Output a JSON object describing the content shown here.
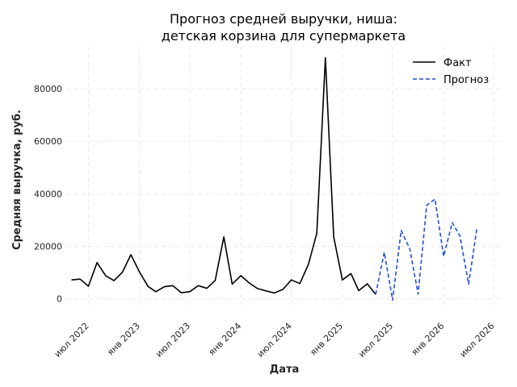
{
  "chart_data": {
    "type": "line",
    "title": [
      "Прогноз средней выручки, ниша:",
      "детская корзина для супермаркета"
    ],
    "xlabel": "Дата",
    "ylabel": "Средняя выручка, руб.",
    "x_range": [
      "2022-04-15",
      "2026-08-01"
    ],
    "ylim": [
      -3500,
      96000
    ],
    "y_ticks": [
      0,
      20000,
      40000,
      60000,
      80000
    ],
    "x_ticks": [
      {
        "date": "2022-07-01",
        "label": "июл 2022"
      },
      {
        "date": "2023-01-01",
        "label": "янв 2023"
      },
      {
        "date": "2023-07-01",
        "label": "июл 2023"
      },
      {
        "date": "2024-01-01",
        "label": "янв 2024"
      },
      {
        "date": "2024-07-01",
        "label": "июл 2024"
      },
      {
        "date": "2025-01-01",
        "label": "янв 2025"
      },
      {
        "date": "2025-07-01",
        "label": "июл 2025"
      },
      {
        "date": "2026-01-01",
        "label": "янв 2026"
      },
      {
        "date": "2026-07-01",
        "label": "июл 2026"
      }
    ],
    "grid": true,
    "legend_position": "top-right",
    "series": [
      {
        "name": "Факт",
        "color": "#000000",
        "style": "solid",
        "points": [
          [
            "2022-05-01",
            7200
          ],
          [
            "2022-06-01",
            7500
          ],
          [
            "2022-07-01",
            4800
          ],
          [
            "2022-08-01",
            13800
          ],
          [
            "2022-09-01",
            8800
          ],
          [
            "2022-10-01",
            6900
          ],
          [
            "2022-11-01",
            10200
          ],
          [
            "2022-12-01",
            16800
          ],
          [
            "2023-01-01",
            10200
          ],
          [
            "2023-02-01",
            4700
          ],
          [
            "2023-03-01",
            2700
          ],
          [
            "2023-04-01",
            4600
          ],
          [
            "2023-05-01",
            5000
          ],
          [
            "2023-06-01",
            2300
          ],
          [
            "2023-07-01",
            2700
          ],
          [
            "2023-08-01",
            5000
          ],
          [
            "2023-09-01",
            4000
          ],
          [
            "2023-10-01",
            7000
          ],
          [
            "2023-11-01",
            23600
          ],
          [
            "2023-12-01",
            5600
          ],
          [
            "2024-01-01",
            8800
          ],
          [
            "2024-02-01",
            6000
          ],
          [
            "2024-03-01",
            3900
          ],
          [
            "2024-04-01",
            3000
          ],
          [
            "2024-05-01",
            2200
          ],
          [
            "2024-06-01",
            3600
          ],
          [
            "2024-07-01",
            7200
          ],
          [
            "2024-08-01",
            5800
          ],
          [
            "2024-09-01",
            13200
          ],
          [
            "2024-10-01",
            25000
          ],
          [
            "2024-11-01",
            91800
          ],
          [
            "2024-12-01",
            23600
          ],
          [
            "2025-01-01",
            7200
          ],
          [
            "2025-02-01",
            9600
          ],
          [
            "2025-03-01",
            3100
          ],
          [
            "2025-04-01",
            5700
          ],
          [
            "2025-05-01",
            1700
          ]
        ]
      },
      {
        "name": "Прогноз",
        "color": "#1f4fd6",
        "style": "dashed",
        "points": [
          [
            "2025-05-01",
            1700
          ],
          [
            "2025-06-01",
            17700
          ],
          [
            "2025-07-01",
            -500
          ],
          [
            "2025-08-01",
            26000
          ],
          [
            "2025-09-01",
            19000
          ],
          [
            "2025-10-01",
            1800
          ],
          [
            "2025-11-01",
            35600
          ],
          [
            "2025-12-01",
            38000
          ],
          [
            "2026-01-01",
            16200
          ],
          [
            "2026-02-01",
            29000
          ],
          [
            "2026-03-01",
            24000
          ],
          [
            "2026-04-01",
            5600
          ],
          [
            "2026-05-01",
            27000
          ]
        ]
      }
    ]
  }
}
